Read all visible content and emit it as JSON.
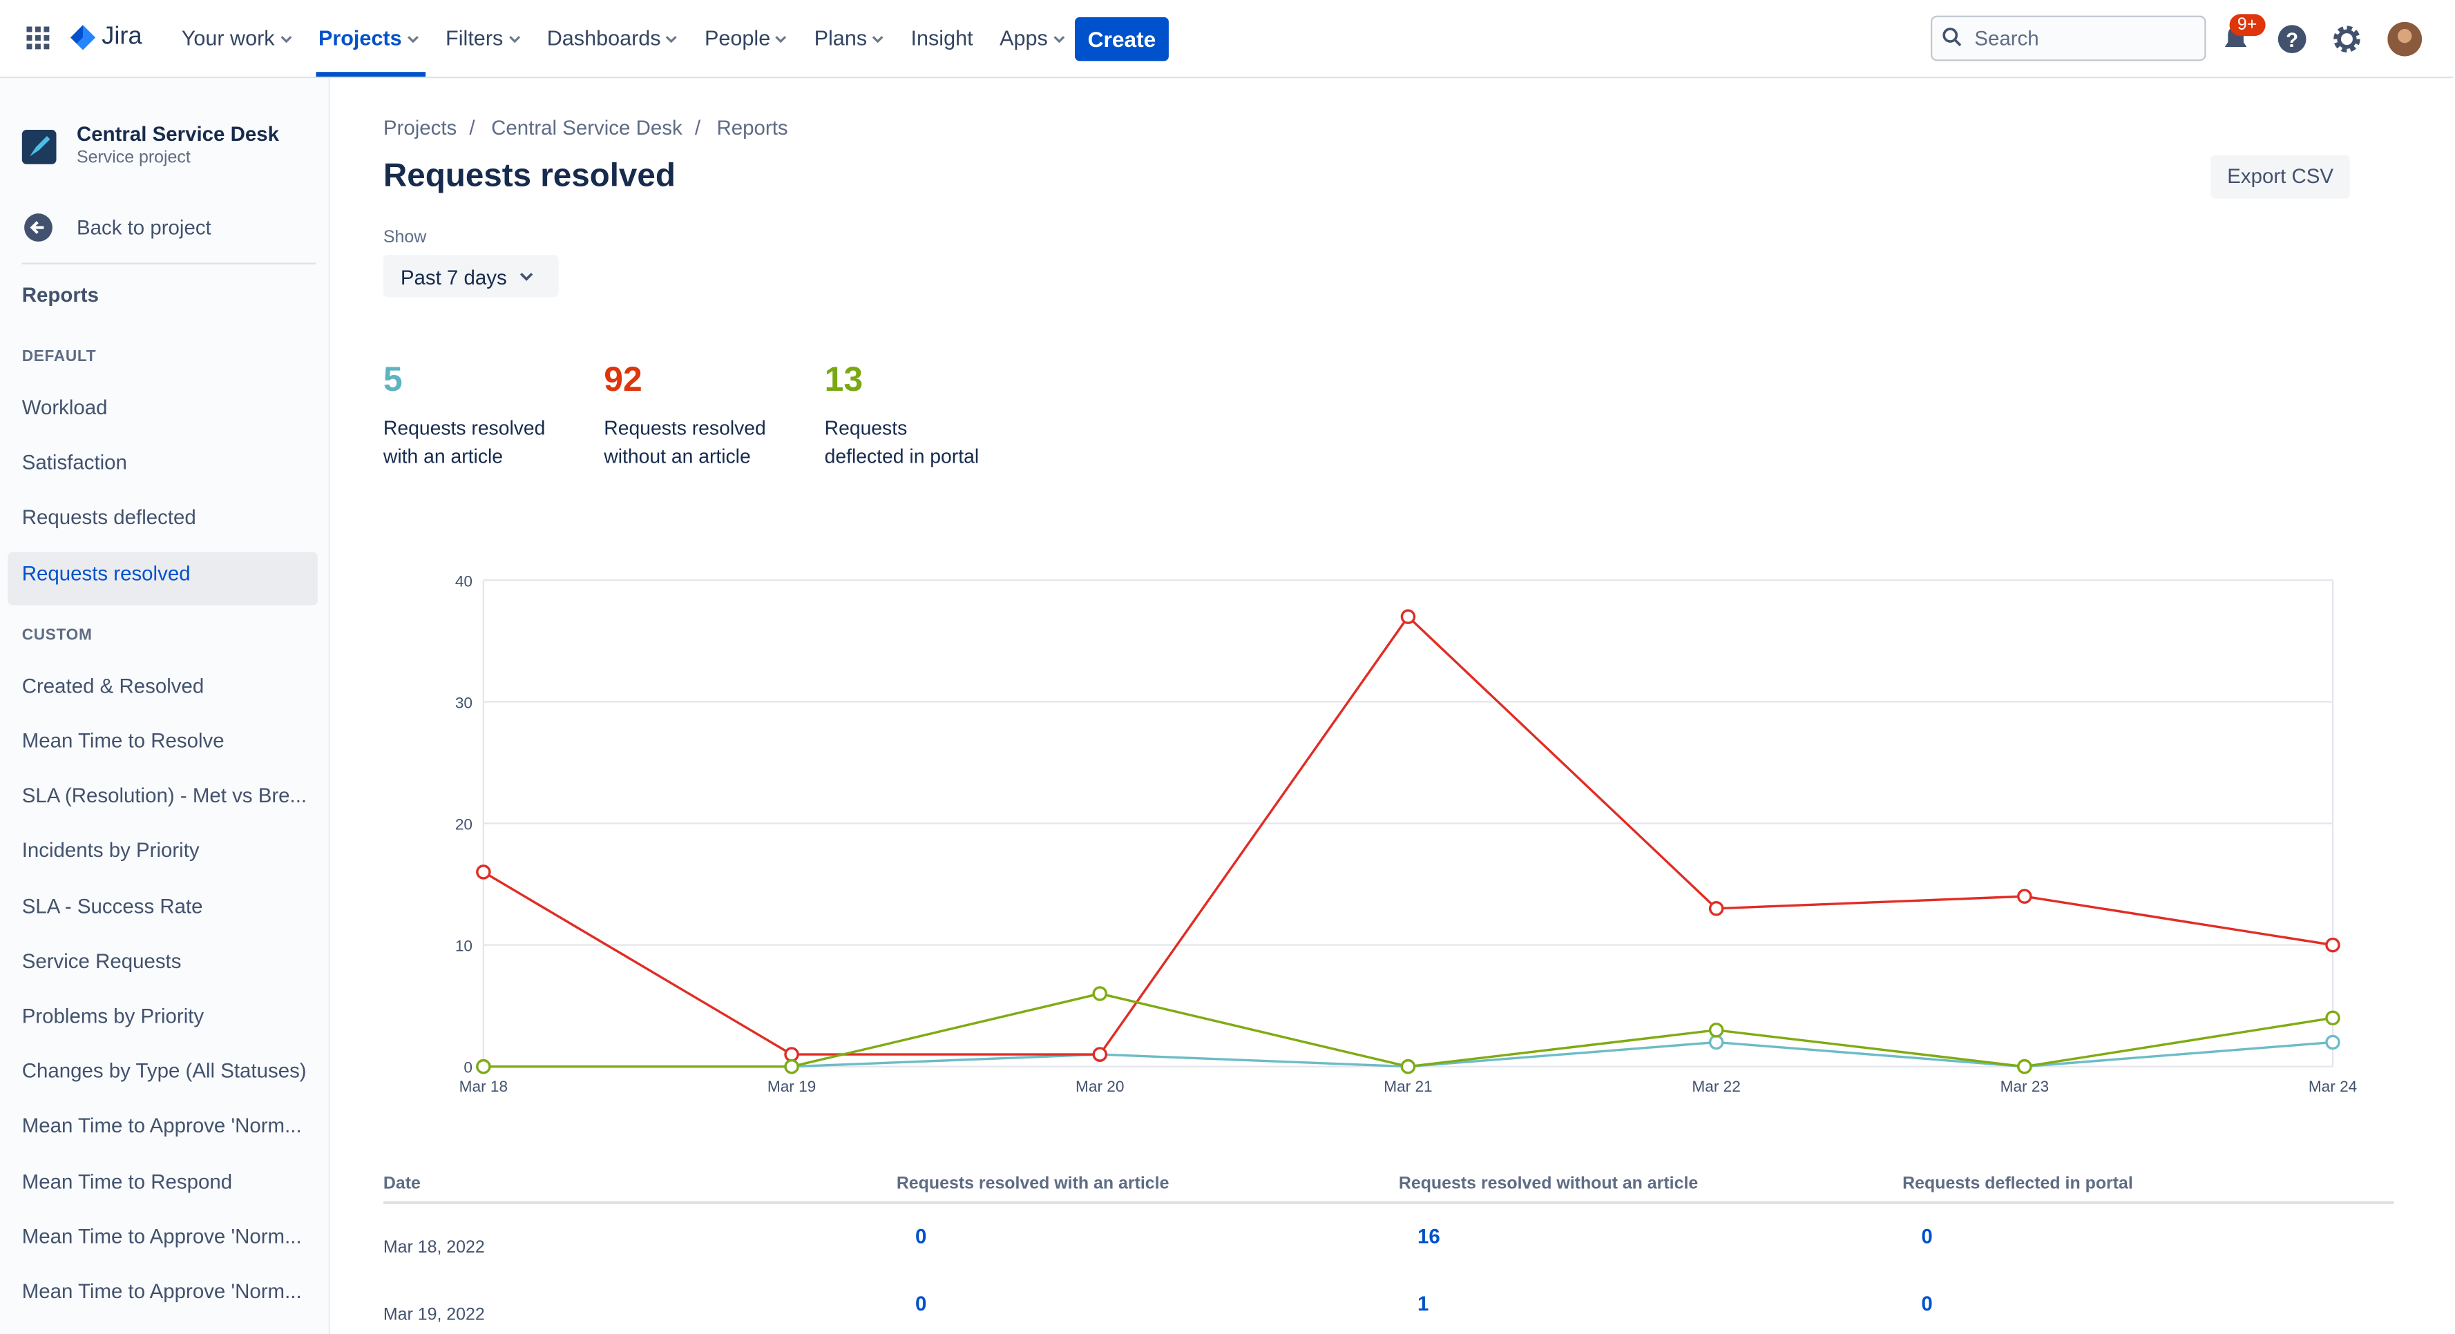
{
  "nav": {
    "product": "Jira",
    "items": [
      {
        "label": "Your work",
        "menu": true
      },
      {
        "label": "Projects",
        "menu": true,
        "selected": true
      },
      {
        "label": "Filters",
        "menu": true
      },
      {
        "label": "Dashboards",
        "menu": true
      },
      {
        "label": "People",
        "menu": true
      },
      {
        "label": "Plans",
        "menu": true
      },
      {
        "label": "Insight",
        "menu": false
      },
      {
        "label": "Apps",
        "menu": true
      }
    ],
    "create": "Create",
    "search": "Search",
    "badge": "9+"
  },
  "sidebar": {
    "project": "Central Service Desk",
    "project_type": "Service project",
    "back": "Back to project",
    "heading": "Reports",
    "sections": [
      {
        "title": "DEFAULT",
        "items": [
          {
            "label": "Workload"
          },
          {
            "label": "Satisfaction"
          },
          {
            "label": "Requests deflected"
          },
          {
            "label": "Requests resolved",
            "selected": true
          }
        ]
      },
      {
        "title": "CUSTOM",
        "items": [
          {
            "label": "Created & Resolved"
          },
          {
            "label": "Mean Time to Resolve"
          },
          {
            "label": "SLA (Resolution) - Met vs Bre..."
          },
          {
            "label": "Incidents by Priority"
          },
          {
            "label": "SLA - Success Rate"
          },
          {
            "label": "Service Requests"
          },
          {
            "label": "Problems by Priority"
          },
          {
            "label": "Changes by Type (All Statuses)"
          },
          {
            "label": "Mean Time to Approve 'Norm..."
          },
          {
            "label": "Mean Time to Respond"
          },
          {
            "label": "Mean Time to Approve 'Norm..."
          },
          {
            "label": "Mean Time to Approve 'Norm..."
          }
        ]
      }
    ]
  },
  "breadcrumbs": [
    "Projects",
    "Central Service Desk",
    "Reports"
  ],
  "header": {
    "title": "Requests resolved",
    "export": "Export CSV",
    "show_label": "Show",
    "period": "Past 7 days"
  },
  "stats": [
    {
      "value": 5,
      "color": "#5fb3bf",
      "lines": [
        "Requests resolved",
        "with an article"
      ]
    },
    {
      "value": 92,
      "color": "#de350b",
      "lines": [
        "Requests resolved",
        "without an article"
      ]
    },
    {
      "value": 13,
      "color": "#7aa812",
      "lines": [
        "Requests",
        "deflected in portal"
      ]
    }
  ],
  "chart_data": {
    "type": "line",
    "categories": [
      "Mar 18",
      "Mar 19",
      "Mar 20",
      "Mar 21",
      "Mar 22",
      "Mar 23",
      "Mar 24"
    ],
    "series": [
      {
        "color": "#6cbcc6",
        "values": [
          0,
          0,
          1,
          0,
          2,
          0,
          2
        ]
      },
      {
        "color": "#e02d25",
        "values": [
          16,
          1,
          1,
          37,
          13,
          14,
          10
        ]
      },
      {
        "color": "#7fab12",
        "values": [
          0,
          0,
          6,
          0,
          3,
          0,
          4
        ]
      }
    ],
    "ylim": [
      0,
      40
    ],
    "yticks": [
      0,
      10,
      20,
      30,
      40
    ],
    "grid": true
  },
  "table": {
    "headers": [
      "Date",
      "Requests resolved with an article",
      "Requests resolved without an article",
      "Requests deflected in portal"
    ],
    "rows": [
      [
        "Mar 18, 2022",
        0,
        16,
        0
      ],
      [
        "Mar 19, 2022",
        0,
        1,
        0
      ]
    ]
  }
}
